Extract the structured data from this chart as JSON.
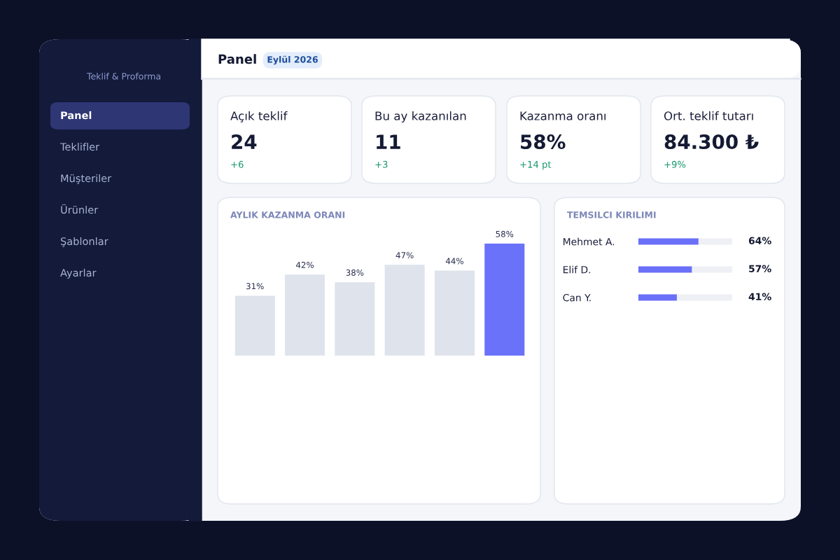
{
  "chart_data": [
    {
      "type": "other",
      "title": "Panel",
      "subtitle": "Eylül 2026",
      "annotations": [
        "Teklif & Proforma",
        "Panel",
        "Teklifler",
        "Müşteriler",
        "Ürünler",
        "Şablonlar",
        "Ayarlar"
      ]
    },
    {
      "type": "other",
      "annotations": [
        "Açık teklif",
        "24",
        "+6",
        "Bu ay kazanılan",
        "11",
        "+3",
        "Kazanma oranı",
        "58%",
        "+14 pt",
        "Ort. teklif tutarı",
        "84.300 ₺",
        "+9%"
      ]
    },
    {
      "type": "bar",
      "title": "AYLIK KAZANMA ORANI",
      "categories": [
        null,
        null,
        null,
        null,
        null,
        null
      ],
      "values": [
        31,
        42,
        38,
        47,
        44,
        58
      ],
      "colors": [
        "#dfe3ec",
        "#dfe3ec",
        "#dfe3ec",
        "#dfe3ec",
        "#dfe3ec",
        "#6a72f9"
      ],
      "value_labels": [
        "31%",
        "42%",
        "38%",
        "47%",
        "44%",
        "58%"
      ],
      "grid": false,
      "legend": false
    },
    {
      "type": "bar",
      "orientation": "horizontal",
      "title": "TEMSILCI KIRILIMI",
      "categories": [
        "Mehmet A.",
        "Elif D.",
        "Can Y."
      ],
      "values": [
        64,
        57,
        41
      ],
      "color": "#6a70f8",
      "value_labels": [
        "64%",
        "57%",
        "41%"
      ],
      "xlim": [
        0,
        100
      ],
      "tick_labels": "y",
      "grid": false,
      "legend": false
    }
  ]
}
